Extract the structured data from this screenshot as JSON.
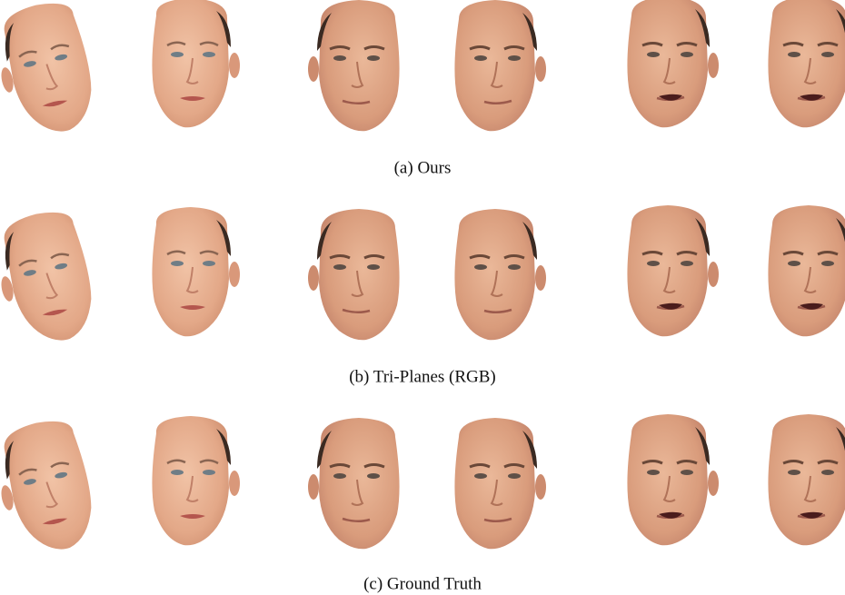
{
  "figure": {
    "captions": [
      "(a) Ours",
      "(b) Tri-Planes (RGB)",
      "(c) Ground Truth"
    ]
  }
}
